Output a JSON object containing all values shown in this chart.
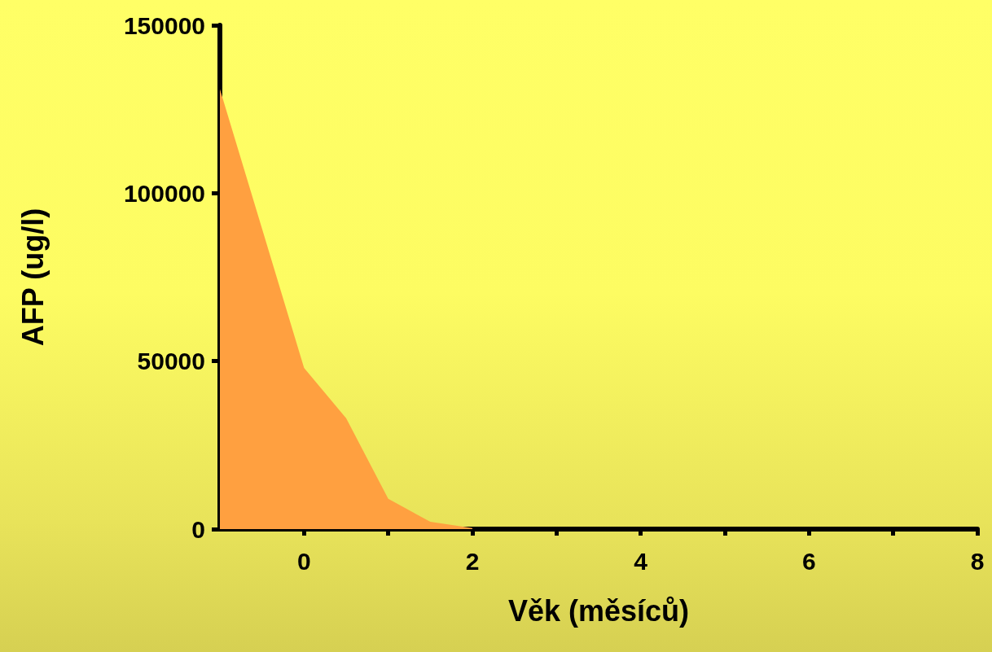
{
  "chart_data": {
    "type": "area",
    "xlabel": "Věk (měsíců)",
    "ylabel": "AFP (ug/l)",
    "x": [
      -1,
      0,
      0.5,
      1,
      1.5,
      2
    ],
    "series": [
      {
        "color": "#ffa040",
        "values": [
          131000,
          48000,
          33000,
          9000,
          2200,
          300
        ]
      }
    ],
    "xlim": [
      -1,
      8
    ],
    "xticks": [
      0,
      {
        "value": 1,
        "label": null
      },
      2,
      {
        "value": 3,
        "label": null
      },
      4,
      {
        "value": 5,
        "label": null
      },
      6,
      {
        "value": 7,
        "label": null
      },
      8
    ],
    "ylim": [
      0,
      150000
    ],
    "yticks": [
      0,
      50000,
      100000,
      150000
    ],
    "grid": false,
    "marker": "none"
  }
}
